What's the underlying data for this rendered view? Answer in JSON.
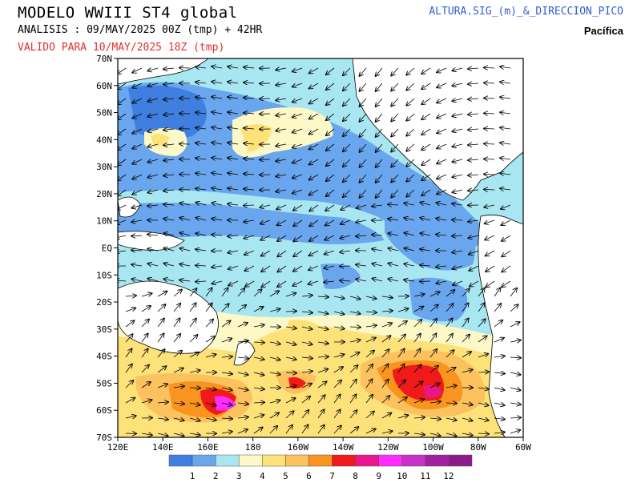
{
  "header": {
    "title": "MODELO WWIII ST4 global",
    "analysis": "ANALISIS : 09/MAY/2025 00Z  (tmp) + 42HR",
    "valid": "VALIDO PARA  10/MAY/2025 18Z  (tmp)",
    "product": "ALTURA.SIG_(m)_&_DIRECCION_PICO",
    "region": "Pacífica"
  },
  "map": {
    "lat_labels": [
      "70N",
      "60N",
      "50N",
      "40N",
      "30N",
      "20N",
      "10N",
      "EQ",
      "10S",
      "20S",
      "30S",
      "40S",
      "50S",
      "60S",
      "70S"
    ],
    "lon_labels": [
      "120E",
      "140E",
      "160E",
      "180",
      "160W",
      "140W",
      "120W",
      "100W",
      "80W",
      "60W"
    ],
    "lon_range": [
      120,
      300
    ],
    "lat_range": [
      -70,
      70
    ]
  },
  "colorbar": {
    "ticks": [
      "1",
      "2",
      "3",
      "4",
      "5",
      "6",
      "7",
      "8",
      "9",
      "10",
      "11",
      "12"
    ],
    "colors": [
      "#3f7fe0",
      "#6aa6ee",
      "#a8e6f2",
      "#fdf8c8",
      "#fde27a",
      "#fcc25e",
      "#f9951e",
      "#f01a1a",
      "#e8188c",
      "#ff2cff",
      "#c832c8",
      "#a020a0",
      "#8b1b8b"
    ]
  }
}
